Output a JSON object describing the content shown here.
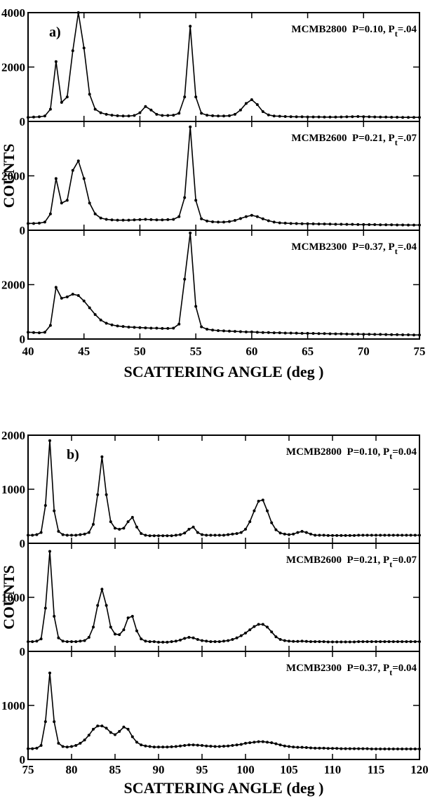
{
  "chart_data": [
    {
      "type": "line",
      "panel_letter": "a)",
      "xlabel": "SCATTERING ANGLE (deg )",
      "ylabel": "COUNTS",
      "markers": true,
      "color": "#000000",
      "xlim": [
        40,
        75
      ],
      "xticks": [
        40,
        45,
        50,
        55,
        60,
        65,
        70,
        75
      ],
      "x": [
        40,
        40.5,
        41,
        41.5,
        42,
        42.5,
        43,
        43.5,
        44,
        44.5,
        45,
        45.5,
        46,
        46.5,
        47,
        47.5,
        48,
        48.5,
        49,
        49.5,
        50,
        50.5,
        51,
        51.5,
        52,
        52.5,
        53,
        53.5,
        54,
        54.5,
        55,
        55.5,
        56,
        56.5,
        57,
        57.5,
        58,
        58.5,
        59,
        59.5,
        60,
        60.5,
        61,
        61.5,
        62,
        62.5,
        63,
        63.5,
        64,
        64.5,
        65,
        65.5,
        66,
        66.5,
        67,
        67.5,
        68,
        68.5,
        69,
        69.5,
        70,
        70.5,
        71,
        71.5,
        72,
        72.5,
        73,
        73.5,
        74,
        74.5,
        75
      ],
      "panels": [
        {
          "label": "MCMB2800  P=0.10, P",
          "label_sub": "t",
          "label_end": "=.04",
          "ylim": [
            0,
            4000
          ],
          "yticks": [
            0,
            2000,
            4000
          ],
          "series": [
            {
              "values": [
                150,
                160,
                170,
                200,
                450,
                2200,
                700,
                900,
                2600,
                4000,
                2700,
                1000,
                450,
                320,
                260,
                230,
                210,
                200,
                200,
                220,
                320,
                550,
                420,
                260,
                220,
                220,
                230,
                300,
                900,
                3500,
                900,
                300,
                230,
                210,
                200,
                200,
                210,
                260,
                420,
                660,
                800,
                620,
                360,
                240,
                200,
                190,
                180,
                175,
                170,
                170,
                165,
                165,
                165,
                160,
                160,
                160,
                165,
                170,
                175,
                180,
                175,
                170,
                165,
                160,
                160,
                155,
                155,
                150,
                150,
                150,
                150
              ]
            }
          ]
        },
        {
          "label": "MCMB2600  P=0.21, P",
          "label_sub": "t",
          "label_end": "=.07",
          "ylim": [
            0,
            4000
          ],
          "yticks": [
            0,
            2000
          ],
          "series": [
            {
              "values": [
                250,
                250,
                260,
                300,
                600,
                1900,
                1000,
                1100,
                2200,
                2550,
                1900,
                1000,
                600,
                450,
                400,
                380,
                370,
                370,
                370,
                380,
                390,
                400,
                390,
                380,
                380,
                390,
                400,
                500,
                1200,
                3800,
                1100,
                420,
                340,
                310,
                300,
                300,
                320,
                360,
                430,
                500,
                550,
                500,
                420,
                350,
                300,
                270,
                260,
                250,
                245,
                240,
                240,
                235,
                230,
                230,
                225,
                220,
                220,
                215,
                215,
                210,
                210,
                205,
                205,
                200,
                200,
                200,
                195,
                195,
                190,
                190,
                190
              ]
            }
          ]
        },
        {
          "label": "MCMB2300  P=0.37, P",
          "label_sub": "t",
          "label_end": "=.04",
          "ylim": [
            0,
            4000
          ],
          "yticks": [
            0,
            2000
          ],
          "series": [
            {
              "values": [
                250,
                240,
                230,
                250,
                500,
                1900,
                1500,
                1550,
                1650,
                1600,
                1400,
                1150,
                900,
                700,
                580,
                520,
                480,
                460,
                440,
                430,
                420,
                410,
                400,
                400,
                390,
                390,
                400,
                550,
                2200,
                3900,
                1200,
                450,
                360,
                330,
                310,
                300,
                290,
                280,
                270,
                260,
                260,
                250,
                240,
                240,
                230,
                230,
                220,
                220,
                215,
                210,
                210,
                205,
                200,
                200,
                195,
                190,
                190,
                185,
                180,
                180,
                175,
                175,
                170,
                170,
                165,
                160,
                160,
                155,
                155,
                150,
                150
              ]
            }
          ]
        }
      ]
    },
    {
      "type": "line",
      "panel_letter": "b)",
      "xlabel": "SCATTERING ANGLE (deg )",
      "ylabel": "COUNTS",
      "markers": true,
      "color": "#000000",
      "xlim": [
        75,
        120
      ],
      "xticks": [
        75,
        80,
        85,
        90,
        95,
        100,
        105,
        110,
        115,
        120
      ],
      "x": [
        75,
        75.5,
        76,
        76.5,
        77,
        77.5,
        78,
        78.5,
        79,
        79.5,
        80,
        80.5,
        81,
        81.5,
        82,
        82.5,
        83,
        83.5,
        84,
        84.5,
        85,
        85.5,
        86,
        86.5,
        87,
        87.5,
        88,
        88.5,
        89,
        89.5,
        90,
        90.5,
        91,
        91.5,
        92,
        92.5,
        93,
        93.5,
        94,
        94.5,
        95,
        95.5,
        96,
        96.5,
        97,
        97.5,
        98,
        98.5,
        99,
        99.5,
        100,
        100.5,
        101,
        101.5,
        102,
        102.5,
        103,
        103.5,
        104,
        104.5,
        105,
        105.5,
        106,
        106.5,
        107,
        107.5,
        108,
        108.5,
        109,
        109.5,
        110,
        110.5,
        111,
        111.5,
        112,
        112.5,
        113,
        113.5,
        114,
        114.5,
        115,
        115.5,
        116,
        116.5,
        117,
        117.5,
        118,
        118.5,
        119,
        119.5,
        120
      ],
      "panels": [
        {
          "label": "MCMB2800  P=0.10, P",
          "label_sub": "t",
          "label_end": "=0.04",
          "ylim": [
            0,
            2000
          ],
          "yticks": [
            0,
            1000,
            2000
          ],
          "series": [
            {
              "values": [
                150,
                150,
                160,
                200,
                700,
                1900,
                600,
                220,
                160,
                150,
                150,
                150,
                160,
                170,
                200,
                350,
                900,
                1600,
                900,
                400,
                280,
                260,
                280,
                400,
                480,
                300,
                180,
                150,
                140,
                140,
                140,
                140,
                140,
                140,
                150,
                160,
                190,
                260,
                300,
                200,
                160,
                150,
                150,
                150,
                150,
                150,
                160,
                170,
                180,
                200,
                260,
                400,
                600,
                780,
                800,
                600,
                380,
                250,
                190,
                170,
                160,
                170,
                200,
                220,
                200,
                170,
                150,
                150,
                150,
                145,
                145,
                145,
                145,
                145,
                145,
                145,
                150,
                150,
                150,
                150,
                150,
                150,
                150,
                150,
                150,
                150,
                150,
                150,
                150,
                150,
                150
              ]
            }
          ]
        },
        {
          "label": "MCMB2600  P=0.21, P",
          "label_sub": "t",
          "label_end": "=0.07",
          "ylim": [
            0,
            2000
          ],
          "yticks": [
            0,
            1000
          ],
          "series": [
            {
              "values": [
                180,
                180,
                190,
                230,
                800,
                1850,
                650,
                250,
                190,
                180,
                180,
                180,
                190,
                200,
                260,
                450,
                850,
                1150,
                850,
                450,
                320,
                310,
                400,
                620,
                650,
                380,
                230,
                190,
                180,
                180,
                170,
                170,
                170,
                180,
                190,
                210,
                240,
                260,
                250,
                220,
                200,
                190,
                180,
                180,
                180,
                190,
                200,
                220,
                250,
                290,
                340,
                400,
                460,
                500,
                500,
                450,
                360,
                270,
                220,
                200,
                190,
                185,
                185,
                190,
                185,
                180,
                180,
                180,
                180,
                175,
                175,
                175,
                175,
                175,
                175,
                175,
                180,
                180,
                180,
                180,
                180,
                180,
                180,
                180,
                180,
                180,
                180,
                180,
                180,
                180,
                180
              ]
            }
          ]
        },
        {
          "label": "MCMB2300  P=0.37, P",
          "label_sub": "t",
          "label_end": "=0.04",
          "ylim": [
            0,
            2000
          ],
          "yticks": [
            0,
            1000
          ],
          "series": [
            {
              "values": [
                200,
                200,
                210,
                260,
                700,
                1600,
                700,
                300,
                240,
                230,
                240,
                260,
                300,
                360,
                450,
                560,
                620,
                620,
                580,
                500,
                460,
                520,
                600,
                560,
                420,
                320,
                270,
                250,
                240,
                230,
                230,
                230,
                230,
                235,
                240,
                250,
                260,
                270,
                270,
                265,
                260,
                250,
                245,
                240,
                240,
                245,
                250,
                260,
                270,
                280,
                300,
                310,
                320,
                330,
                330,
                320,
                310,
                290,
                270,
                250,
                240,
                230,
                225,
                225,
                220,
                215,
                210,
                210,
                210,
                205,
                205,
                205,
                200,
                200,
                200,
                200,
                200,
                200,
                200,
                195,
                195,
                195,
                195,
                195,
                195,
                195,
                195,
                195,
                195,
                195,
                195
              ]
            }
          ]
        }
      ]
    }
  ]
}
